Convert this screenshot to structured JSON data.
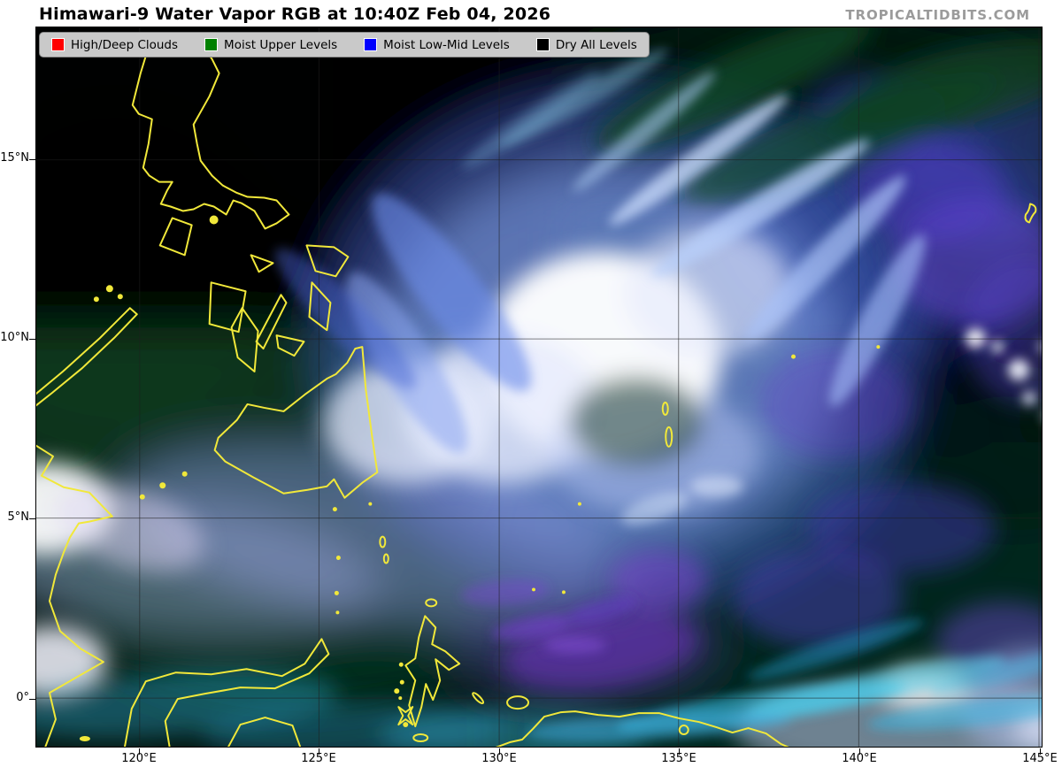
{
  "header": {
    "title": "Himawari-9 Water Vapor RGB at 10:40Z Feb 04, 2026",
    "watermark": "TROPICALTIDBITS.COM"
  },
  "legend": {
    "background": "#c9c9c9",
    "items": [
      {
        "key": "high-deep-clouds",
        "label": "High/Deep Clouds",
        "color": "#fe0000"
      },
      {
        "key": "moist-upper-levels",
        "label": "Moist Upper Levels",
        "color": "#008000"
      },
      {
        "key": "moist-low-mid-levels",
        "label": "Moist Low-Mid Levels",
        "color": "#0000fe"
      },
      {
        "key": "dry-all-levels",
        "label": "Dry All Levels",
        "color": "#000000"
      }
    ]
  },
  "map": {
    "coastline_color": "#f1e83a",
    "lat_ticks": [
      "15°N",
      "10°N",
      "5°N",
      "0°"
    ],
    "lon_ticks": [
      "120°E",
      "125°E",
      "130°E",
      "135°E",
      "140°E",
      "145°E"
    ]
  }
}
